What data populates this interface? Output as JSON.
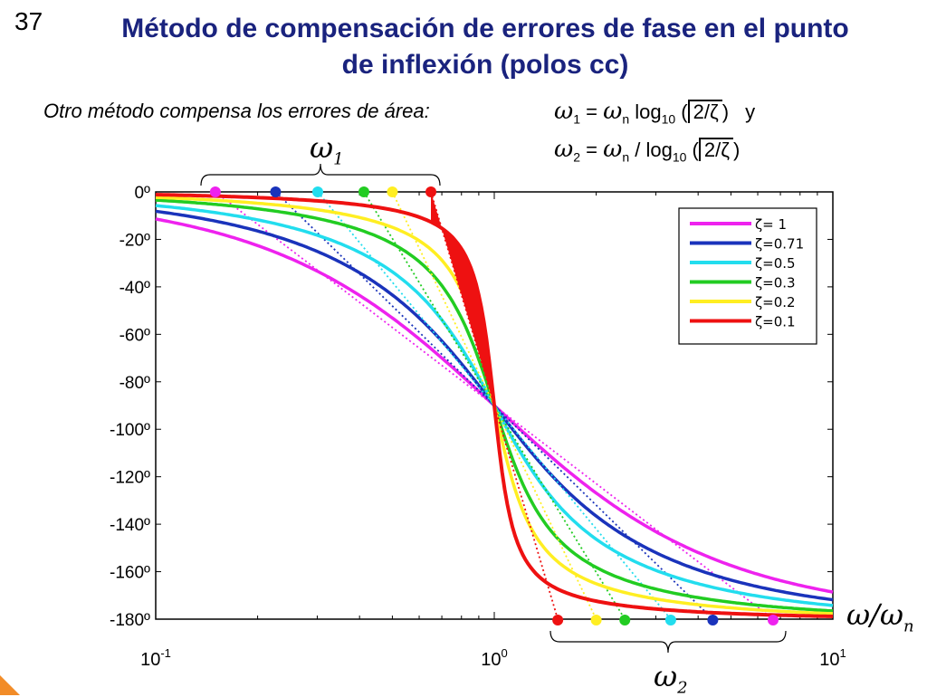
{
  "slide": {
    "number": "37",
    "title_line1": "Método de compensación de errores de fase en el punto",
    "title_line2": "de inflexión (polos cc)",
    "intro": "Otro método compensa los errores de área:"
  },
  "formulas": {
    "w1_lhs": "ω",
    "w1_lhs_sub": "1",
    "w1_eq": "=",
    "w1_wn": "ω",
    "w1_wn_sub": "n",
    "w1_log": "log",
    "w1_log_sub": "10",
    "w1_open": "(",
    "w1_arg": "2/ζ",
    "w1_close": ")",
    "w1_and": "y",
    "w2_lhs": "ω",
    "w2_lhs_sub": "2",
    "w2_eq": "=",
    "w2_wn": "ω",
    "w2_wn_sub": "n",
    "w2_div": "/",
    "w2_log": "log",
    "w2_log_sub": "10",
    "w2_open": "(",
    "w2_arg": "2/ζ",
    "w2_close": ")"
  },
  "annotations": {
    "omega1": "ω",
    "omega1_sub": "1",
    "omega2": "ω",
    "omega2_sub": "2",
    "axis_label": "ω/ω",
    "axis_label_sub": "n"
  },
  "chart_data": {
    "type": "line",
    "x_scale": "log",
    "xlim": [
      0.1,
      10
    ],
    "ylim": [
      -180,
      0
    ],
    "x_ticks": [
      {
        "value": 0.1,
        "base": "10",
        "exp": "-1"
      },
      {
        "value": 1,
        "base": "10",
        "exp": "0"
      },
      {
        "value": 10,
        "base": "10",
        "exp": "1"
      }
    ],
    "y_ticks": [
      {
        "value": 0,
        "label": "0º"
      },
      {
        "value": -20,
        "label": "-20º"
      },
      {
        "value": -40,
        "label": "-40º"
      },
      {
        "value": -60,
        "label": "-60º"
      },
      {
        "value": -80,
        "label": "-80º"
      },
      {
        "value": -100,
        "label": "-100º"
      },
      {
        "value": -120,
        "label": "-120º"
      },
      {
        "value": -140,
        "label": "-140º"
      },
      {
        "value": -160,
        "label": "-160º"
      },
      {
        "value": -180,
        "label": "-180º"
      }
    ],
    "legend_position": "top-right",
    "series": [
      {
        "name": "ζ=  1",
        "zeta": 1.0,
        "color": "#ee22ee",
        "w1": 0.15,
        "w2": 6.66
      },
      {
        "name": "ζ=0.71",
        "zeta": 0.71,
        "color": "#1a33bb",
        "w1": 0.226,
        "w2": 4.42
      },
      {
        "name": "ζ=0.5",
        "zeta": 0.5,
        "color": "#22ddee",
        "w1": 0.301,
        "w2": 3.32
      },
      {
        "name": "ζ=0.3",
        "zeta": 0.3,
        "color": "#22cc22",
        "w1": 0.412,
        "w2": 2.43
      },
      {
        "name": "ζ=0.2",
        "zeta": 0.2,
        "color": "#ffee22",
        "w1": 0.5,
        "w2": 2.0
      },
      {
        "name": "ζ=0.1",
        "zeta": 0.1,
        "color": "#ee1111",
        "w1": 0.65,
        "w2": 1.54
      }
    ]
  }
}
